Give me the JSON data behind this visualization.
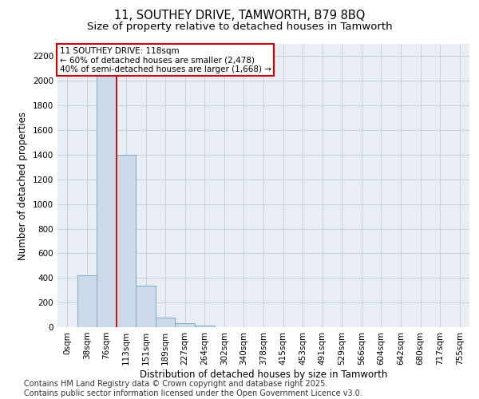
{
  "title1": "11, SOUTHEY DRIVE, TAMWORTH, B79 8BQ",
  "title2": "Size of property relative to detached houses in Tamworth",
  "xlabel": "Distribution of detached houses by size in Tamworth",
  "ylabel": "Number of detached properties",
  "bin_labels": [
    "0sqm",
    "38sqm",
    "76sqm",
    "113sqm",
    "151sqm",
    "189sqm",
    "227sqm",
    "264sqm",
    "302sqm",
    "340sqm",
    "378sqm",
    "415sqm",
    "453sqm",
    "491sqm",
    "529sqm",
    "566sqm",
    "604sqm",
    "642sqm",
    "680sqm",
    "717sqm",
    "755sqm"
  ],
  "bar_heights": [
    2,
    420,
    2100,
    1400,
    340,
    80,
    35,
    10,
    2,
    0,
    0,
    0,
    0,
    0,
    0,
    0,
    0,
    0,
    0,
    0,
    0
  ],
  "bar_color": "#ccd9e8",
  "bar_edgecolor": "#7aaac8",
  "bar_linewidth": 0.7,
  "vline_x": 2.5,
  "vline_color": "#cc0000",
  "vline_linewidth": 1.3,
  "annotation_text": "11 SOUTHEY DRIVE: 118sqm\n← 60% of detached houses are smaller (2,478)\n40% of semi-detached houses are larger (1,668) →",
  "annotation_box_color": "#cc0000",
  "ylim": [
    0,
    2300
  ],
  "yticks": [
    0,
    200,
    400,
    600,
    800,
    1000,
    1200,
    1400,
    1600,
    1800,
    2000,
    2200
  ],
  "grid_color": "#c0ccd8",
  "background_color": "#e8eef4",
  "footer": "Contains HM Land Registry data © Crown copyright and database right 2025.\nContains public sector information licensed under the Open Government Licence v3.0.",
  "title_fontsize": 10.5,
  "subtitle_fontsize": 9.5,
  "axis_label_fontsize": 8.5,
  "tick_fontsize": 7.5,
  "footer_fontsize": 7,
  "annot_fontsize": 7.5
}
